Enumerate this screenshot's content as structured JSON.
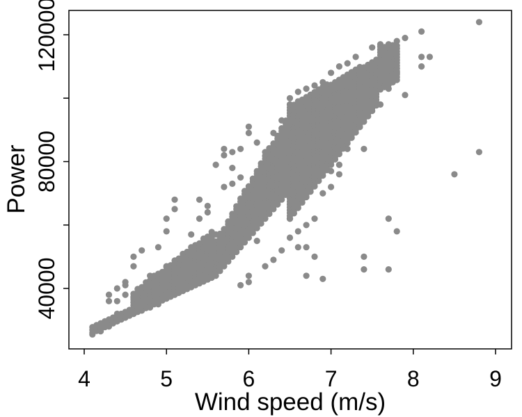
{
  "chart_data": {
    "type": "scatter",
    "title": "",
    "xlabel": "Wind speed (m/s)",
    "ylabel": "Power",
    "xlim": [
      3.85,
      9.1
    ],
    "ylim": [
      20000,
      128000
    ],
    "x_ticks": [
      4,
      5,
      6,
      7,
      8,
      9
    ],
    "y_ticks": [
      40000,
      60000,
      80000,
      100000,
      120000
    ],
    "y_tick_labels_shown": [
      "40000",
      "80000",
      "120000"
    ],
    "grid": false,
    "legend": "none",
    "point_color": "#8a8a8a",
    "series": [
      {
        "main_band": {
          "description_free": true,
          "x_start": 4.1,
          "x_end": 7.8,
          "step": 0.05
        },
        "points": [
          [
            4.1,
            25500
          ],
          [
            4.2,
            26500
          ],
          [
            4.2,
            28000
          ],
          [
            4.3,
            28000
          ],
          [
            4.3,
            36000
          ],
          [
            4.3,
            38000
          ],
          [
            4.4,
            30000
          ],
          [
            4.4,
            32000
          ],
          [
            4.4,
            36000
          ],
          [
            4.4,
            40000
          ],
          [
            4.5,
            31000
          ],
          [
            4.5,
            38000
          ],
          [
            4.5,
            41000
          ],
          [
            4.5,
            42000
          ],
          [
            4.6,
            32000
          ],
          [
            4.6,
            37000
          ],
          [
            4.6,
            47000
          ],
          [
            4.6,
            50000
          ],
          [
            4.7,
            33000
          ],
          [
            4.7,
            36000
          ],
          [
            4.7,
            52000
          ],
          [
            4.8,
            34000
          ],
          [
            4.8,
            44000
          ],
          [
            4.9,
            35000
          ],
          [
            4.9,
            40000
          ],
          [
            4.9,
            53000
          ],
          [
            5.0,
            47000
          ],
          [
            5.0,
            58000
          ],
          [
            5.0,
            62000
          ],
          [
            5.1,
            44000
          ],
          [
            5.1,
            48000
          ],
          [
            5.1,
            65000
          ],
          [
            5.1,
            68000
          ],
          [
            5.2,
            46000
          ],
          [
            5.2,
            50000
          ],
          [
            5.3,
            48000
          ],
          [
            5.3,
            57000
          ],
          [
            5.4,
            62000
          ],
          [
            5.4,
            68000
          ],
          [
            5.5,
            52000
          ],
          [
            5.5,
            64000
          ],
          [
            5.5,
            66000
          ],
          [
            5.6,
            57000
          ],
          [
            5.6,
            79000
          ],
          [
            5.7,
            72000
          ],
          [
            5.7,
            82000
          ],
          [
            5.7,
            84000
          ],
          [
            5.8,
            73000
          ],
          [
            5.8,
            78000
          ],
          [
            5.8,
            83000
          ],
          [
            5.9,
            41000
          ],
          [
            5.9,
            75000
          ],
          [
            5.9,
            84000
          ],
          [
            6.0,
            42000
          ],
          [
            6.0,
            44000
          ],
          [
            6.0,
            89000
          ],
          [
            6.0,
            91000
          ],
          [
            6.1,
            55000
          ],
          [
            6.1,
            86000
          ],
          [
            6.2,
            47000
          ],
          [
            6.2,
            83000
          ],
          [
            6.3,
            49000
          ],
          [
            6.3,
            84000
          ],
          [
            6.3,
            89000
          ],
          [
            6.4,
            52000
          ],
          [
            6.4,
            93000
          ],
          [
            6.5,
            56000
          ],
          [
            6.5,
            62000
          ],
          [
            6.5,
            98000
          ],
          [
            6.5,
            100000
          ],
          [
            6.6,
            53000
          ],
          [
            6.6,
            58000
          ],
          [
            6.6,
            99000
          ],
          [
            6.6,
            102000
          ],
          [
            6.7,
            44000
          ],
          [
            6.7,
            53000
          ],
          [
            6.7,
            60000
          ],
          [
            6.7,
            103000
          ],
          [
            6.8,
            50000
          ],
          [
            6.8,
            62000
          ],
          [
            6.8,
            104000
          ],
          [
            6.9,
            43000
          ],
          [
            6.9,
            70000
          ],
          [
            6.9,
            105000
          ],
          [
            7.0,
            72000
          ],
          [
            7.0,
            77000
          ],
          [
            7.0,
            108000
          ],
          [
            7.1,
            76000
          ],
          [
            7.1,
            79000
          ],
          [
            7.1,
            110000
          ],
          [
            7.2,
            84000
          ],
          [
            7.2,
            111000
          ],
          [
            7.3,
            90000
          ],
          [
            7.3,
            93000
          ],
          [
            7.3,
            113000
          ],
          [
            7.4,
            84000
          ],
          [
            7.4,
            46000
          ],
          [
            7.4,
            50000
          ],
          [
            7.5,
            97000
          ],
          [
            7.5,
            116000
          ],
          [
            7.6,
            98000
          ],
          [
            7.6,
            117000
          ],
          [
            7.7,
            46000
          ],
          [
            7.7,
            62000
          ],
          [
            7.7,
            103000
          ],
          [
            7.7,
            117000
          ],
          [
            7.8,
            58000
          ],
          [
            7.8,
            108000
          ],
          [
            7.8,
            118000
          ],
          [
            7.9,
            101000
          ],
          [
            7.9,
            119000
          ],
          [
            8.1,
            113000
          ],
          [
            8.1,
            110000
          ],
          [
            8.1,
            121000
          ],
          [
            8.2,
            113000
          ],
          [
            8.5,
            76000
          ],
          [
            8.8,
            83000
          ],
          [
            8.8,
            124000
          ]
        ]
      }
    ]
  }
}
